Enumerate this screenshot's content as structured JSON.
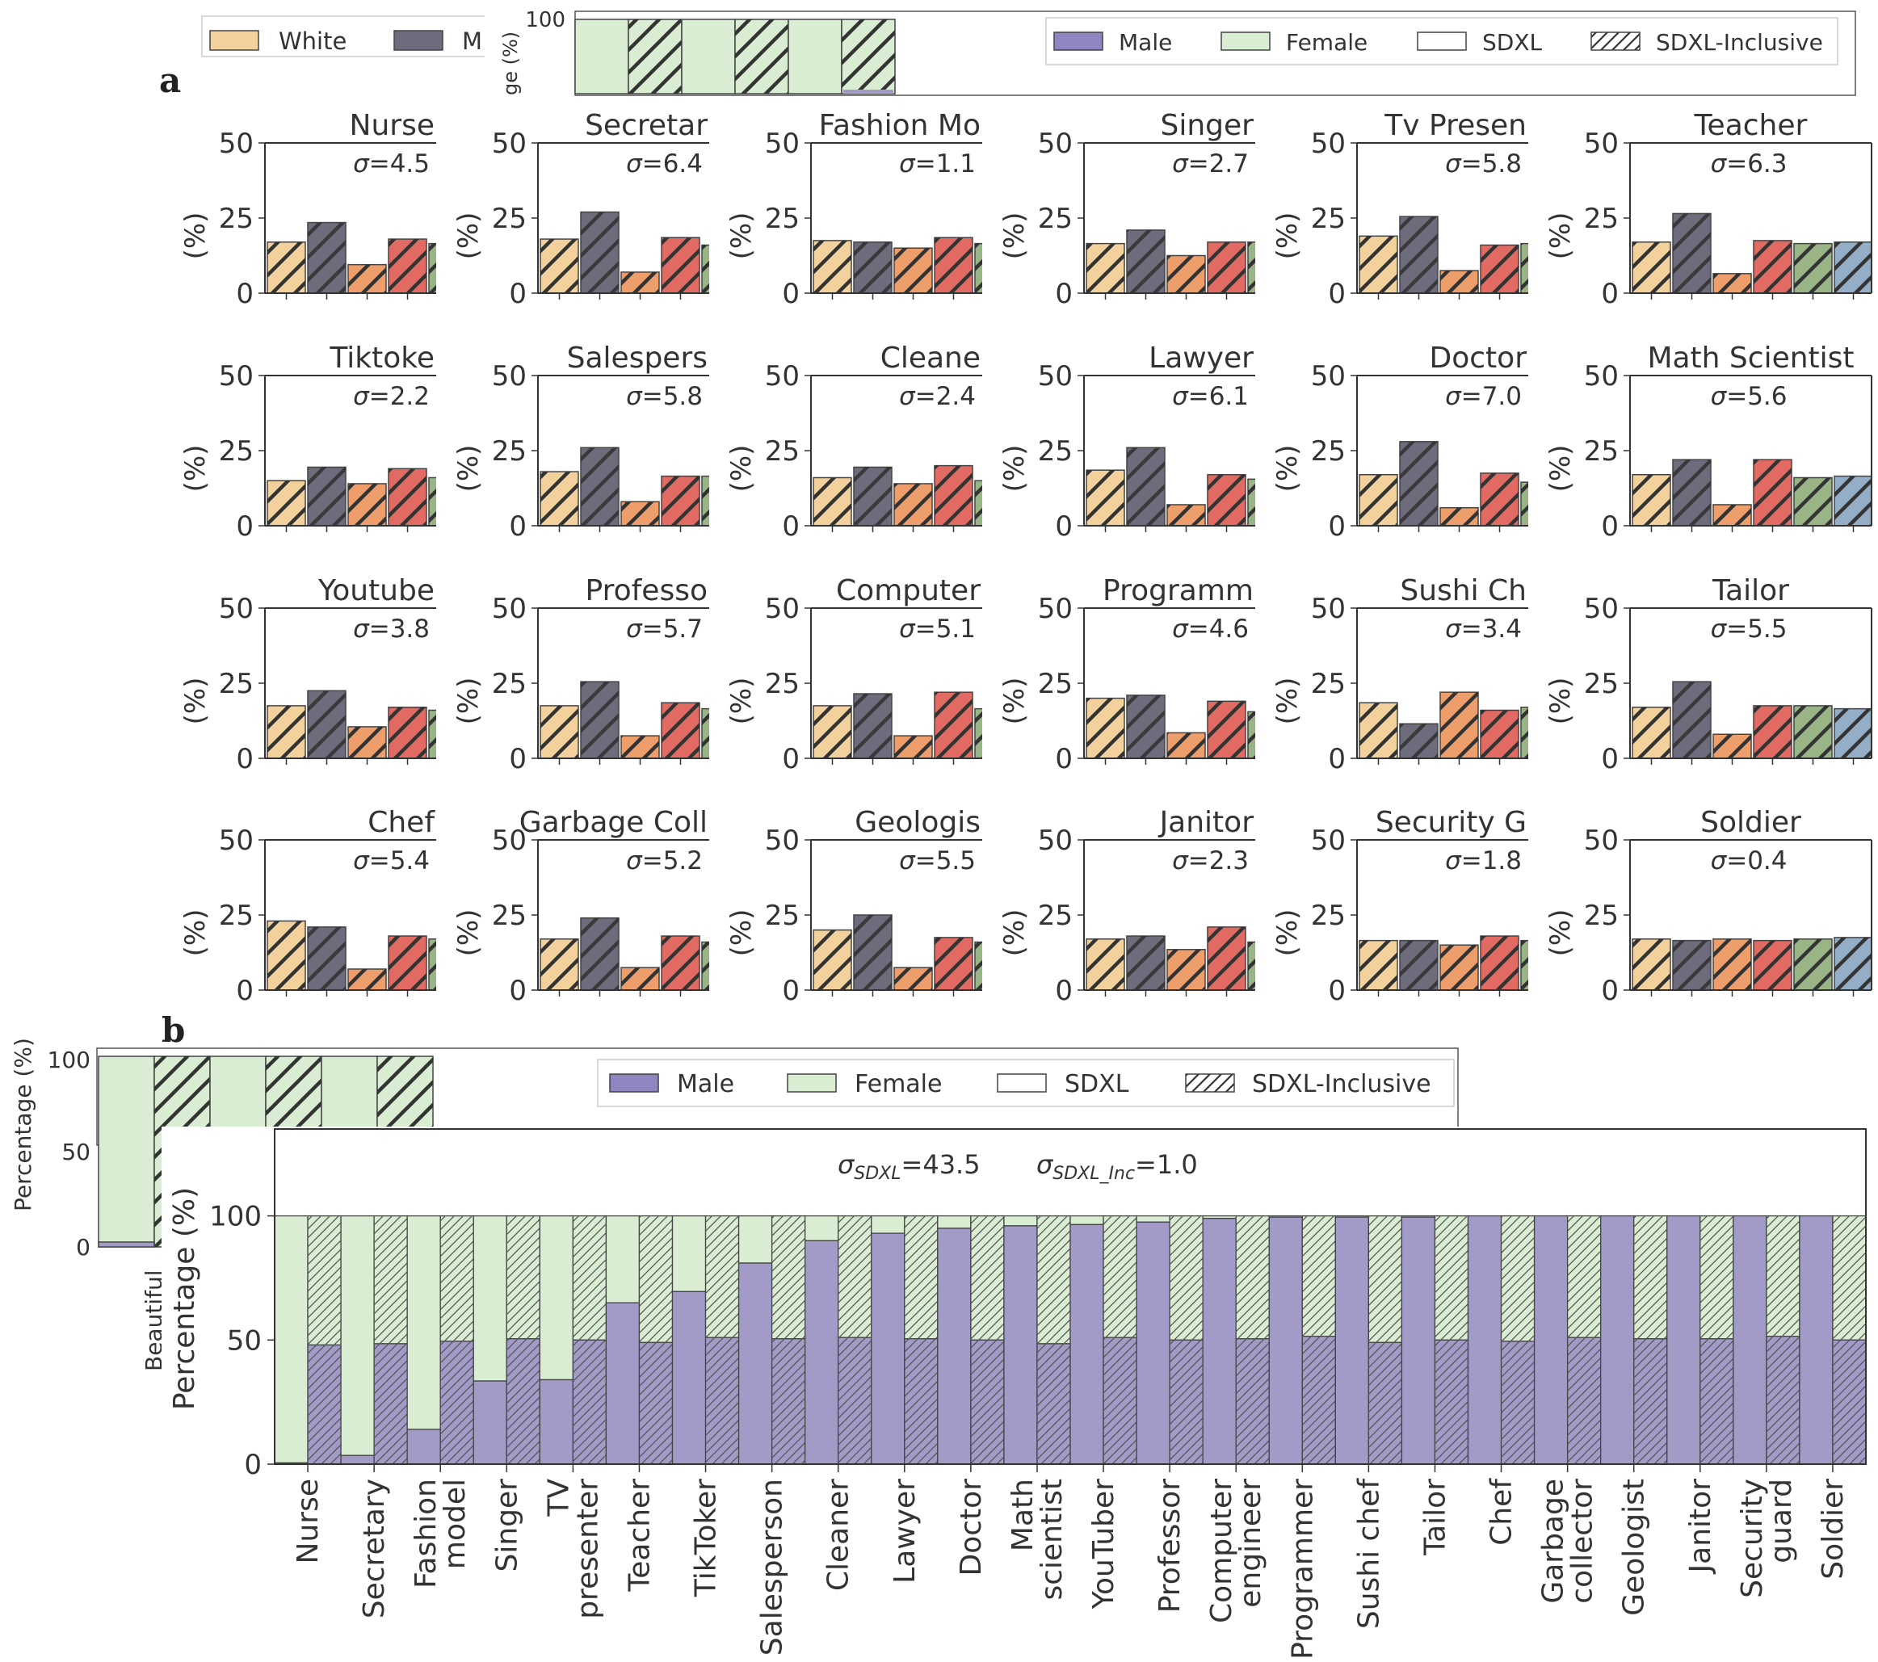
{
  "panel_labels": {
    "a": "a",
    "b": "b"
  },
  "colors": {
    "eth_white": "#F2D19C",
    "eth_middle": "#6E6C7C",
    "eth_3": "#ED9E6B",
    "eth_4": "#E16A63",
    "eth_5": "#99B585",
    "eth_6": "#93AEC6",
    "male": "#A29BC8",
    "male_legend": "#8E86C0",
    "female": "#D9EDD2",
    "edge": "#444444"
  },
  "legend_a": {
    "items": [
      "White",
      "M"
    ]
  },
  "legend_gender": {
    "items": [
      "Male",
      "Female",
      "SDXL",
      "SDXL-Inclusive"
    ]
  },
  "inset_top": {
    "ylabel": "ge (%)",
    "ytick": "100"
  },
  "inset_b": {
    "ylabel": "Percentage (%)",
    "yticks": [
      "100",
      "50",
      "0"
    ],
    "xlabel": "Beautiful"
  },
  "chart_data": [
    {
      "type": "bar",
      "panel": "a",
      "ylabel": "(%)",
      "ylim": [
        0,
        50
      ],
      "yticks": [
        "0",
        "25",
        "50"
      ],
      "subplots": [
        {
          "title": "Nurse",
          "sigma_label": "σ=4.5",
          "values": [
            17,
            23.5,
            9.5,
            18,
            16.5
          ]
        },
        {
          "title": "Secretar",
          "sigma_label": "σ=6.4",
          "values": [
            18,
            27,
            7,
            18.5,
            16
          ]
        },
        {
          "title": "Fashion Mo",
          "sigma_label": "σ=1.1",
          "values": [
            17.5,
            17,
            15,
            18.5,
            16.5
          ]
        },
        {
          "title": "Singer",
          "sigma_label": "σ=2.7",
          "values": [
            16.5,
            21,
            12.5,
            17,
            17
          ]
        },
        {
          "title": "Tv Presen",
          "sigma_label": "σ=5.8",
          "values": [
            19,
            25.5,
            7.5,
            16,
            16.5
          ]
        },
        {
          "title": "Teacher",
          "sigma_label": "σ=6.3",
          "values": [
            17,
            26.5,
            6.5,
            17.5,
            16.5,
            17
          ]
        },
        {
          "title": "Tiktoke",
          "sigma_label": "σ=2.2",
          "values": [
            15,
            19.5,
            14,
            19,
            16
          ]
        },
        {
          "title": "Salespers",
          "sigma_label": "σ=5.8",
          "values": [
            18,
            26,
            8,
            16.5,
            16.5
          ]
        },
        {
          "title": "Cleane",
          "sigma_label": "σ=2.4",
          "values": [
            16,
            19.5,
            14,
            20,
            15
          ]
        },
        {
          "title": "Lawyer",
          "sigma_label": "σ=6.1",
          "values": [
            18.5,
            26,
            7,
            17,
            15.5
          ]
        },
        {
          "title": "Doctor",
          "sigma_label": "σ=7.0",
          "values": [
            17,
            28,
            6,
            17.5,
            14.5
          ]
        },
        {
          "title": "Math Scientist",
          "sigma_label": "σ=5.6",
          "values": [
            17,
            22,
            7,
            22,
            16,
            16.5
          ]
        },
        {
          "title": "Youtube",
          "sigma_label": "σ=3.8",
          "values": [
            17.5,
            22.5,
            10.5,
            17,
            16
          ]
        },
        {
          "title": "Professo",
          "sigma_label": "σ=5.7",
          "values": [
            17.5,
            25.5,
            7.5,
            18.5,
            16.5
          ]
        },
        {
          "title": "Computer",
          "sigma_label": "σ=5.1",
          "values": [
            17.5,
            21.5,
            7.5,
            22,
            16.5
          ]
        },
        {
          "title": "Programm",
          "sigma_label": "σ=4.6",
          "values": [
            20,
            21,
            8.5,
            19,
            15.5
          ]
        },
        {
          "title": "Sushi Ch",
          "sigma_label": "σ=3.4",
          "values": [
            18.5,
            11.5,
            22,
            16,
            17
          ]
        },
        {
          "title": "Tailor",
          "sigma_label": "σ=5.5",
          "values": [
            17,
            25.5,
            8,
            17.5,
            17.5,
            16.5
          ]
        },
        {
          "title": "Chef",
          "sigma_label": "σ=5.4",
          "values": [
            23,
            21,
            7,
            18,
            17
          ]
        },
        {
          "title": "Garbage Coll",
          "sigma_label": "σ=5.2",
          "values": [
            17,
            24,
            7.5,
            18,
            16
          ]
        },
        {
          "title": "Geologis",
          "sigma_label": "σ=5.5",
          "values": [
            20,
            25,
            7.5,
            17.5,
            16
          ]
        },
        {
          "title": "Janitor",
          "sigma_label": "σ=2.3",
          "values": [
            17,
            18,
            13.5,
            21,
            16
          ]
        },
        {
          "title": "Security G",
          "sigma_label": "σ=1.8",
          "values": [
            16.5,
            16.5,
            15,
            18,
            16.5
          ]
        },
        {
          "title": "Soldier",
          "sigma_label": "σ=0.4",
          "values": [
            17,
            16.5,
            17,
            16.5,
            17,
            17.5
          ]
        }
      ]
    },
    {
      "type": "bar",
      "panel": "b",
      "stacked": true,
      "ylabel": "Percentage (%)",
      "ylim": [
        0,
        135
      ],
      "yticks": [
        "0",
        "50",
        "100"
      ],
      "sigma_sdxl": "σ_SDXL=43.5",
      "sigma_inc": "σ_SDXL_Inc=1.0",
      "categories": [
        [
          "Nurse"
        ],
        [
          "Secretary"
        ],
        [
          "Fashion",
          "model"
        ],
        [
          "Singer"
        ],
        [
          "TV",
          "presenter"
        ],
        [
          "Teacher"
        ],
        [
          "TikToker"
        ],
        [
          "Salesperson"
        ],
        [
          "Cleaner"
        ],
        [
          "Lawyer"
        ],
        [
          "Doctor"
        ],
        [
          "Math",
          "scientist"
        ],
        [
          "YouTuber"
        ],
        [
          "Professor"
        ],
        [
          "Computer",
          "engineer"
        ],
        [
          "Programmer"
        ],
        [
          "Sushi chef"
        ],
        [
          "Tailor"
        ],
        [
          "Chef"
        ],
        [
          "Garbage",
          "collector"
        ],
        [
          "Geologist"
        ],
        [
          "Janitor"
        ],
        [
          "Security",
          "guard"
        ],
        [
          "Soldier"
        ]
      ],
      "series": [
        {
          "name": "SDXL",
          "male": [
            0.5,
            3.5,
            14,
            33.5,
            34,
            65,
            69.5,
            81,
            90,
            93,
            95,
            96,
            96.5,
            97.5,
            99,
            99.5,
            99.5,
            99.5,
            100,
            100,
            100,
            100,
            100,
            100
          ]
        },
        {
          "name": "SDXL-Inclusive",
          "male": [
            48,
            48.5,
            49.5,
            50.5,
            50,
            49,
            51,
            50.5,
            51,
            50.5,
            50,
            48.5,
            51,
            50,
            50.5,
            51.5,
            49,
            50,
            49.5,
            51,
            50.5,
            50.5,
            51.5,
            50
          ]
        }
      ]
    }
  ]
}
